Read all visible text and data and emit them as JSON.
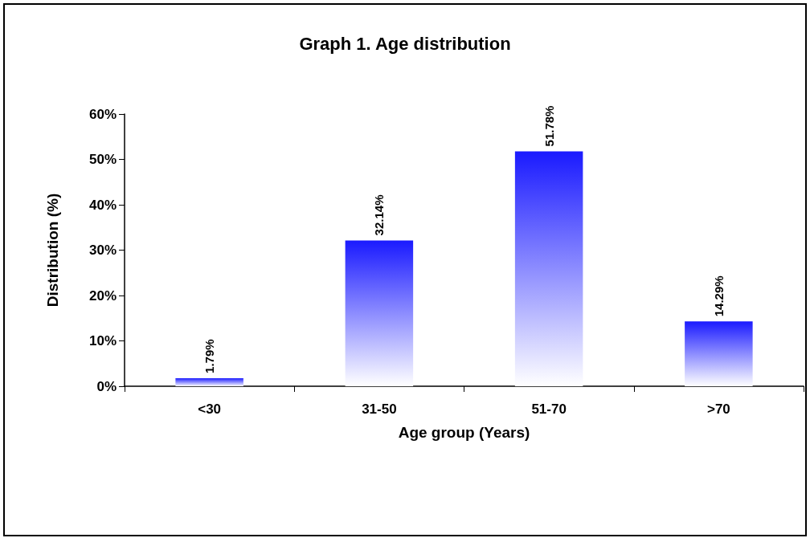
{
  "chart_data": {
    "type": "bar",
    "title": "Graph 1. Age distribution",
    "xlabel": "Age group (Years)",
    "ylabel": "Distribution (%)",
    "categories": [
      "<30",
      "31-50",
      "51-70",
      ">70"
    ],
    "values": [
      1.79,
      32.14,
      51.78,
      14.29
    ],
    "value_labels": [
      "1.79%",
      "32.14%",
      "51.78%",
      "14.29%"
    ],
    "color": "#1a1aff",
    "ylim": [
      0,
      60
    ],
    "yticks": [
      {
        "value": 0,
        "label": "0%"
      },
      {
        "value": 10,
        "label": "10%"
      },
      {
        "value": 20,
        "label": "20%"
      },
      {
        "value": 30,
        "label": "30%"
      },
      {
        "value": 40,
        "label": "40%"
      },
      {
        "value": 50,
        "label": "50%"
      },
      {
        "value": 60,
        "label": "60%"
      }
    ],
    "grid": false
  }
}
